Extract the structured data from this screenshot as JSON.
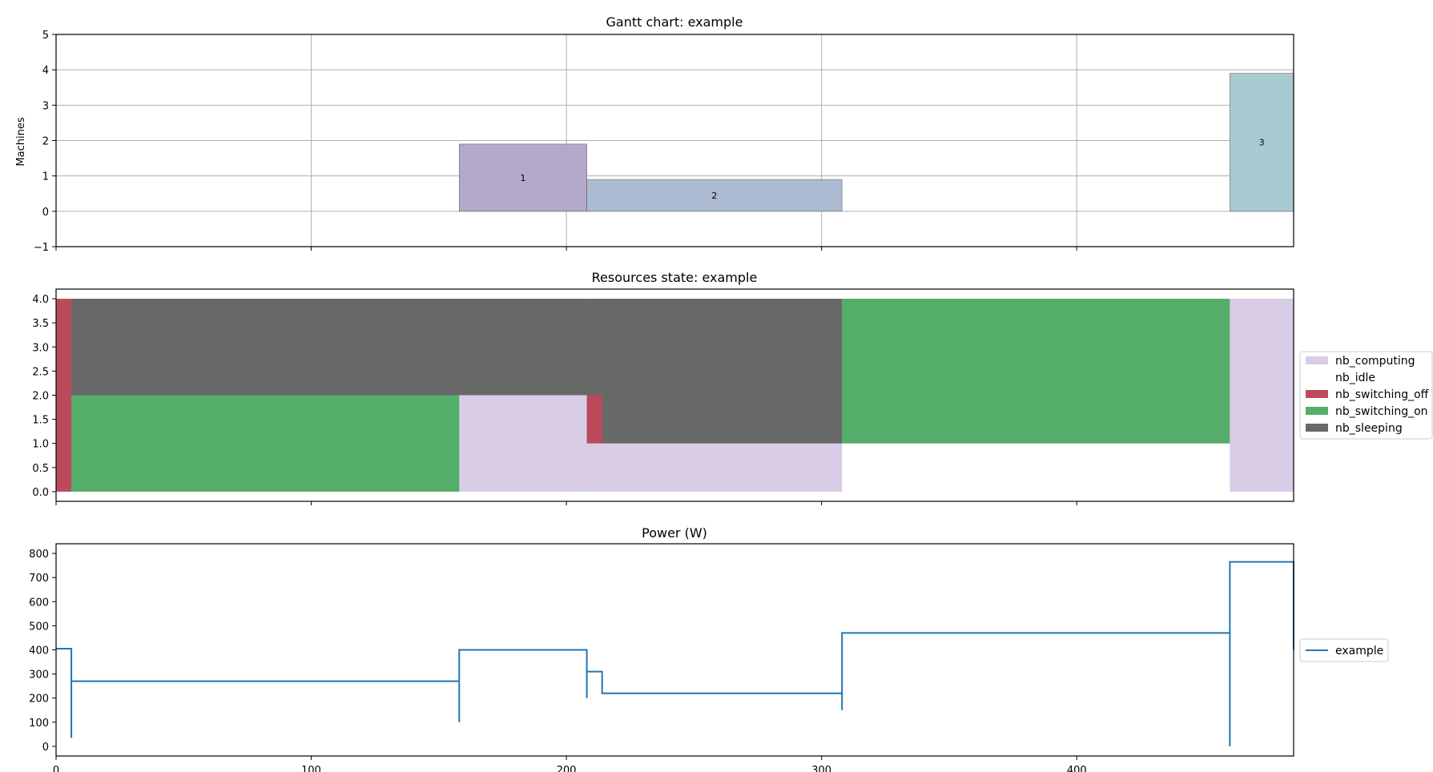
{
  "colors": {
    "computing": "#d9cce6",
    "idle": "#ffffff",
    "switching_off": "#bc4a5c",
    "switching_on": "#55ad6a",
    "sleeping": "#686868",
    "job1": "#b3a9cb",
    "job2": "#acbbd1",
    "job3": "#a8cbd1",
    "power_line": "#1f77b4",
    "grid": "#b0b0b0"
  },
  "chart_data": [
    {
      "type": "gantt",
      "title": "Gantt chart: example",
      "ylabel": "Machines",
      "xlim": [
        0,
        485
      ],
      "ylim": [
        -1,
        5
      ],
      "yticks": [
        "−1",
        "0",
        "1",
        "2",
        "3",
        "4",
        "5"
      ],
      "grid": true,
      "jobs": [
        {
          "label": "1",
          "start": 158,
          "end": 208,
          "machine_low": 0,
          "machine_high": 1.9
        },
        {
          "label": "2",
          "start": 208,
          "end": 308,
          "machine_low": 0,
          "machine_high": 0.9
        },
        {
          "label": "3",
          "start": 460,
          "end": 485,
          "machine_low": 0,
          "machine_high": 3.9
        }
      ]
    },
    {
      "type": "area",
      "title": "Resources state: example",
      "xlim": [
        0,
        485
      ],
      "ylim": [
        -0.2,
        4.2
      ],
      "yticks": [
        "0.0",
        "0.5",
        "1.0",
        "1.5",
        "2.0",
        "2.5",
        "3.0",
        "3.5",
        "4.0"
      ],
      "legend_position": "right",
      "series_order": [
        "nb_computing",
        "nb_idle",
        "nb_switching_off",
        "nb_switching_on",
        "nb_sleeping"
      ],
      "intervals": [
        {
          "start": 0,
          "end": 6,
          "nb_computing": 0,
          "nb_idle": 0,
          "nb_switching_off": 4,
          "nb_switching_on": 0,
          "nb_sleeping": 0
        },
        {
          "start": 6,
          "end": 158,
          "nb_computing": 0,
          "nb_idle": 0,
          "nb_switching_off": 0,
          "nb_switching_on": 2,
          "nb_sleeping": 2
        },
        {
          "start": 158,
          "end": 208,
          "nb_computing": 2,
          "nb_idle": 0,
          "nb_switching_off": 0,
          "nb_switching_on": 0,
          "nb_sleeping": 2
        },
        {
          "start": 208,
          "end": 214,
          "nb_computing": 1,
          "nb_idle": 0,
          "nb_switching_off": 1,
          "nb_switching_on": 0,
          "nb_sleeping": 2
        },
        {
          "start": 214,
          "end": 308,
          "nb_computing": 1,
          "nb_idle": 0,
          "nb_switching_off": 0,
          "nb_switching_on": 0,
          "nb_sleeping": 3
        },
        {
          "start": 308,
          "end": 460,
          "nb_computing": 0,
          "nb_idle": 1,
          "nb_switching_off": 0,
          "nb_switching_on": 3,
          "nb_sleeping": 0
        },
        {
          "start": 460,
          "end": 485,
          "nb_computing": 4,
          "nb_idle": 0,
          "nb_switching_off": 0,
          "nb_switching_on": 0,
          "nb_sleeping": 0
        }
      ],
      "legend": [
        "nb_computing",
        "nb_idle",
        "nb_switching_off",
        "nb_switching_on",
        "nb_sleeping"
      ]
    },
    {
      "type": "line",
      "title": "Power (W)",
      "xlim": [
        0,
        485
      ],
      "ylim": [
        -40,
        840
      ],
      "yticks": [
        "0",
        "100",
        "200",
        "300",
        "400",
        "500",
        "600",
        "700",
        "800"
      ],
      "xticks": [
        "0",
        "100",
        "200",
        "300",
        "400"
      ],
      "legend_position": "right",
      "series": [
        {
          "name": "example",
          "points": [
            [
              0,
              405
            ],
            [
              6,
              405
            ],
            [
              6,
              35
            ],
            [
              6,
              270
            ],
            [
              158,
              270
            ],
            [
              158,
              100
            ],
            [
              158,
              400
            ],
            [
              208,
              400
            ],
            [
              208,
              200
            ],
            [
              208,
              310
            ],
            [
              214,
              310
            ],
            [
              214,
              220
            ],
            [
              308,
              220
            ],
            [
              308,
              150
            ],
            [
              308,
              470
            ],
            [
              460,
              470
            ],
            [
              460,
              0
            ],
            [
              460,
              765
            ],
            [
              485,
              765
            ],
            [
              485,
              400
            ]
          ]
        }
      ]
    }
  ]
}
